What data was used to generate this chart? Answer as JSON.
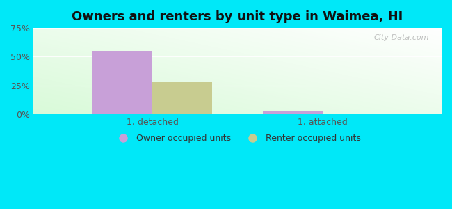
{
  "title": "Owners and renters by unit type in Waimea, HI",
  "groups": [
    "1, detached",
    "1, attached"
  ],
  "owner_values": [
    55.0,
    3.0
  ],
  "renter_values": [
    28.0,
    1.0
  ],
  "owner_color": "#c8a0d8",
  "renter_color": "#c8cc90",
  "ylim": [
    0,
    75
  ],
  "yticks": [
    0,
    25,
    50,
    75
  ],
  "yticklabels": [
    "0%",
    "25%",
    "50%",
    "75%"
  ],
  "outer_bg": "#00e8f8",
  "bar_width": 0.35,
  "legend_labels": [
    "Owner occupied units",
    "Renter occupied units"
  ],
  "watermark": "City-Data.com",
  "grid_color": "#ddeecc",
  "title_fontsize": 13
}
